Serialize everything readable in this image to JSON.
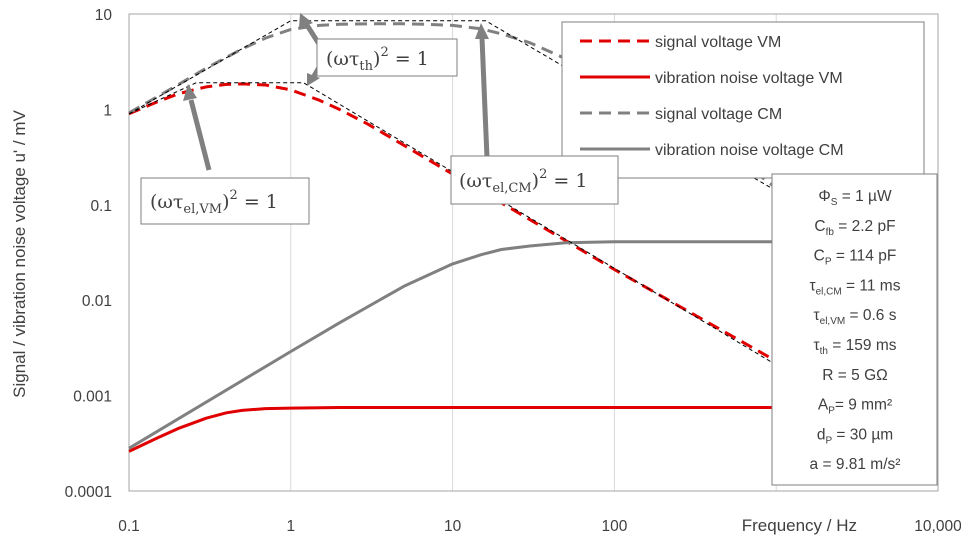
{
  "chart_data": {
    "type": "line",
    "xlabel": "Frequency / Hz",
    "ylabel": "Signal / vibration noise voltage u' / mV",
    "x_scale": "log",
    "y_scale": "log",
    "xlim": [
      0.1,
      10000
    ],
    "ylim": [
      0.0001,
      10
    ],
    "x_ticks": [
      "0.1",
      "1",
      "10",
      "100",
      "10,000"
    ],
    "y_ticks": [
      "0.0001",
      "0.001",
      "0.01",
      "0.1",
      "1",
      "10"
    ],
    "grid": "vertical major lines",
    "legend_position": "top-right",
    "series": [
      {
        "name": "signal voltage VM",
        "color": "#e00000",
        "style": "dashed",
        "x": [
          0.1,
          0.15,
          0.2,
          0.25,
          0.3,
          0.4,
          0.5,
          0.7,
          1,
          1.5,
          2,
          3,
          5,
          7,
          10,
          20,
          50,
          100,
          1000
        ],
        "y": [
          0.9,
          1.2,
          1.45,
          1.6,
          1.72,
          1.83,
          1.85,
          1.8,
          1.6,
          1.25,
          1.0,
          0.7,
          0.42,
          0.3,
          0.21,
          0.105,
          0.042,
          0.021,
          0.0023
        ]
      },
      {
        "name": "vibration noise voltage VM",
        "color": "#e00000",
        "style": "solid",
        "x": [
          0.1,
          0.15,
          0.2,
          0.3,
          0.4,
          0.5,
          0.7,
          1,
          2,
          5,
          10,
          100,
          1000
        ],
        "y": [
          0.00026,
          0.00036,
          0.00045,
          0.00058,
          0.00066,
          0.0007,
          0.00073,
          0.00074,
          0.00075,
          0.00075,
          0.00075,
          0.00075,
          0.00075
        ]
      },
      {
        "name": "signal voltage CM",
        "color": "#808080",
        "style": "dashed",
        "x": [
          0.1,
          0.2,
          0.3,
          0.5,
          0.7,
          1,
          1.5,
          2,
          3,
          5,
          7,
          10,
          15,
          20,
          30,
          50,
          100,
          200,
          500,
          1000
        ],
        "y": [
          0.92,
          1.8,
          2.7,
          4.3,
          5.6,
          6.9,
          7.6,
          7.8,
          7.9,
          7.9,
          7.8,
          7.6,
          7.0,
          6.2,
          5.0,
          3.4,
          1.8,
          0.9,
          0.36,
          0.15
        ]
      },
      {
        "name": "vibration noise voltage CM",
        "color": "#808080",
        "style": "solid",
        "x": [
          0.1,
          1,
          2,
          5,
          10,
          15,
          20,
          30,
          50,
          100,
          1000
        ],
        "y": [
          0.00028,
          0.0029,
          0.0058,
          0.014,
          0.024,
          0.03,
          0.034,
          0.037,
          0.04,
          0.041,
          0.041
        ]
      }
    ],
    "asymptotes": {
      "style": "thin black dashed",
      "color": "#000000",
      "lines": [
        {
          "x": [
            0.1,
            0.26,
            1.2,
            1000
          ],
          "y": [
            0.9,
            1.9,
            1.9,
            0.0021
          ]
        },
        {
          "x": [
            0.1,
            1.0,
            16,
            1000
          ],
          "y": [
            0.9,
            8.5,
            8.5,
            0.14
          ]
        }
      ]
    },
    "annotations": {
      "tau_th": {
        "base": "(ωτ",
        "sub": "th",
        "close": ")",
        "sup": "2",
        "rhs": " = 1"
      },
      "tau_el_vm": {
        "base": "(ωτ",
        "sub": "el,VM",
        "close": ")",
        "sup": "2",
        "rhs": " = 1"
      },
      "tau_el_cm": {
        "base": "(ωτ",
        "sub": "el,CM",
        "close": ")",
        "sup": "2",
        "rhs": " = 1"
      }
    },
    "parameters": [
      {
        "main": "Φ",
        "sub": "S",
        "rest": " = 1 µW"
      },
      {
        "main": "C",
        "sub": "fb",
        "rest": " = 2.2 pF"
      },
      {
        "main": "C",
        "sub": "P",
        "rest": " = 114 pF"
      },
      {
        "main": "τ",
        "sub": "el,CM",
        "rest": " = 11 ms"
      },
      {
        "main": "τ",
        "sub": "el,VM",
        "rest": " = 0.6 s"
      },
      {
        "main": "τ",
        "sub": "th",
        "rest": " = 159 ms"
      },
      {
        "main": "R = 5 GΩ",
        "sub": "",
        "rest": ""
      },
      {
        "main": "A",
        "sub": "P",
        "rest": "= 9 mm²"
      },
      {
        "main": "d",
        "sub": "P",
        "rest": " = 30 µm"
      },
      {
        "main": "a = 9.81 m/s²",
        "sub": "",
        "rest": ""
      }
    ]
  }
}
